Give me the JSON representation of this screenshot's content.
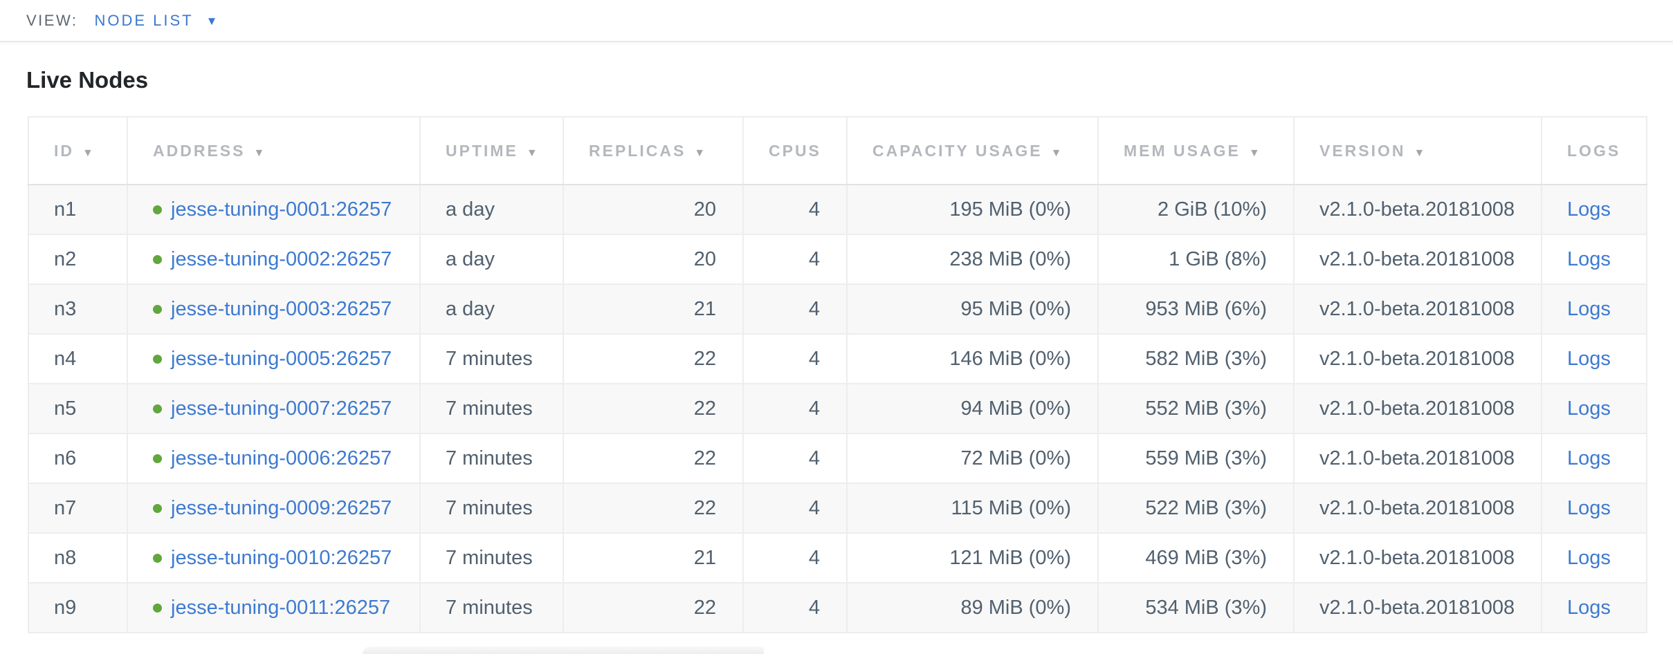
{
  "view_bar": {
    "label": "VIEW:",
    "selected": "NODE LIST",
    "caret_icon": "▼"
  },
  "page": {
    "title": "Live Nodes"
  },
  "colors": {
    "link_blue": "#3d7ad1",
    "view_blue": "#3a78d2",
    "healthy_green": "#62a63e",
    "header_gray": "#b4b8bd",
    "cell_text": "#51606e",
    "odd_row_bg": "#f8f8f8"
  },
  "table": {
    "sort_icon": "▼",
    "columns": [
      {
        "key": "id",
        "label": "ID",
        "sorted": true
      },
      {
        "key": "address",
        "label": "ADDRESS",
        "sorted": true
      },
      {
        "key": "uptime",
        "label": "UPTIME",
        "sorted": true
      },
      {
        "key": "replicas",
        "label": "REPLICAS",
        "sorted": true
      },
      {
        "key": "cpus",
        "label": "CPUS",
        "sorted": false
      },
      {
        "key": "capacity",
        "label": "CAPACITY USAGE",
        "sorted": true
      },
      {
        "key": "mem",
        "label": "MEM USAGE",
        "sorted": true
      },
      {
        "key": "version",
        "label": "VERSION",
        "sorted": true
      },
      {
        "key": "logs",
        "label": "LOGS",
        "sorted": false
      }
    ],
    "rows": [
      {
        "id": "n1",
        "status": "healthy",
        "address": "jesse-tuning-0001:26257",
        "uptime": "a day",
        "replicas": "20",
        "cpus": "4",
        "capacity": "195 MiB (0%)",
        "mem": "2 GiB (10%)",
        "version": "v2.1.0-beta.20181008",
        "logs": "Logs"
      },
      {
        "id": "n2",
        "status": "healthy",
        "address": "jesse-tuning-0002:26257",
        "uptime": "a day",
        "replicas": "20",
        "cpus": "4",
        "capacity": "238 MiB (0%)",
        "mem": "1 GiB (8%)",
        "version": "v2.1.0-beta.20181008",
        "logs": "Logs"
      },
      {
        "id": "n3",
        "status": "healthy",
        "address": "jesse-tuning-0003:26257",
        "uptime": "a day",
        "replicas": "21",
        "cpus": "4",
        "capacity": "95 MiB (0%)",
        "mem": "953 MiB (6%)",
        "version": "v2.1.0-beta.20181008",
        "logs": "Logs"
      },
      {
        "id": "n4",
        "status": "healthy",
        "address": "jesse-tuning-0005:26257",
        "uptime": "7 minutes",
        "replicas": "22",
        "cpus": "4",
        "capacity": "146 MiB (0%)",
        "mem": "582 MiB (3%)",
        "version": "v2.1.0-beta.20181008",
        "logs": "Logs"
      },
      {
        "id": "n5",
        "status": "healthy",
        "address": "jesse-tuning-0007:26257",
        "uptime": "7 minutes",
        "replicas": "22",
        "cpus": "4",
        "capacity": "94 MiB (0%)",
        "mem": "552 MiB (3%)",
        "version": "v2.1.0-beta.20181008",
        "logs": "Logs"
      },
      {
        "id": "n6",
        "status": "healthy",
        "address": "jesse-tuning-0006:26257",
        "uptime": "7 minutes",
        "replicas": "22",
        "cpus": "4",
        "capacity": "72 MiB (0%)",
        "mem": "559 MiB (3%)",
        "version": "v2.1.0-beta.20181008",
        "logs": "Logs"
      },
      {
        "id": "n7",
        "status": "healthy",
        "address": "jesse-tuning-0009:26257",
        "uptime": "7 minutes",
        "replicas": "22",
        "cpus": "4",
        "capacity": "115 MiB (0%)",
        "mem": "522 MiB (3%)",
        "version": "v2.1.0-beta.20181008",
        "logs": "Logs"
      },
      {
        "id": "n8",
        "status": "healthy",
        "address": "jesse-tuning-0010:26257",
        "uptime": "7 minutes",
        "replicas": "21",
        "cpus": "4",
        "capacity": "121 MiB (0%)",
        "mem": "469 MiB (3%)",
        "version": "v2.1.0-beta.20181008",
        "logs": "Logs"
      },
      {
        "id": "n9",
        "status": "healthy",
        "address": "jesse-tuning-0011:26257",
        "uptime": "7 minutes",
        "replicas": "22",
        "cpus": "4",
        "capacity": "89 MiB (0%)",
        "mem": "534 MiB (3%)",
        "version": "v2.1.0-beta.20181008",
        "logs": "Logs"
      }
    ]
  }
}
